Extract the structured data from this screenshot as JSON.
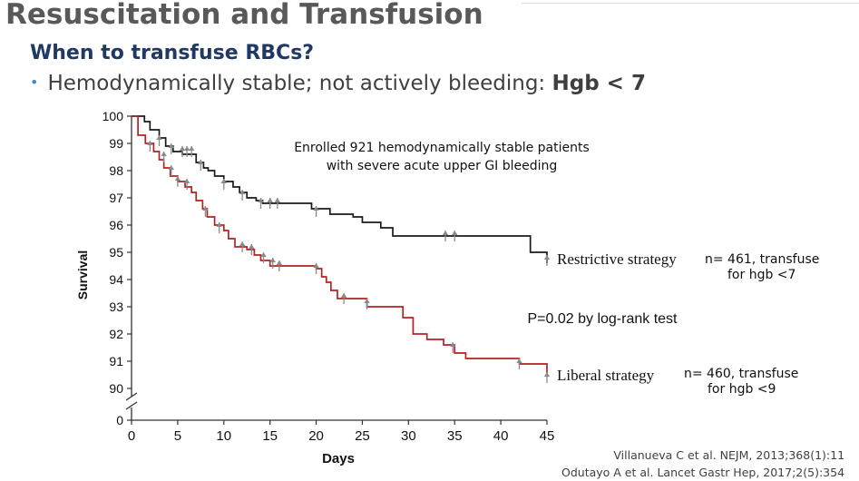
{
  "slide": {
    "title": "Resuscitation and Transfusion",
    "subtitle": "When to transfuse RBCs?",
    "bullet_text": "Hemodynamically stable; not actively bleeding: ",
    "bullet_strong": "Hgb < 7",
    "citations": [
      "Villanueva C et al. NEJM, 2013;368(1):11",
      "Odutayo A et al. Lancet Gastr Hep, 2017;2(5):354"
    ],
    "annotations": {
      "restrictive_n_line1": "n= 461, transfuse",
      "restrictive_n_line2": "for hgb <7",
      "liberal_n_line1": "n= 460, transfuse",
      "liberal_n_line2": "for hgb <9"
    }
  },
  "chart_data": {
    "type": "line",
    "subtype": "kaplan-meier step",
    "title": "",
    "note_line1": "Enrolled 921 hemodynamically stable patients",
    "note_line2": "with severe acute upper GI bleeding",
    "pvalue": "P=0.02 by log-rank test",
    "xlabel": "Days",
    "ylabel": "Survival",
    "xlim": [
      0,
      45
    ],
    "ylim": [
      0,
      100
    ],
    "y_axis_break": "between 0 and 90",
    "x_ticks": [
      "0",
      "5",
      "10",
      "15",
      "20",
      "25",
      "30",
      "35",
      "40",
      "45"
    ],
    "y_ticks": [
      "100",
      "99",
      "98",
      "97",
      "96",
      "95",
      "94",
      "93",
      "92",
      "91",
      "90",
      "0"
    ],
    "grid": false,
    "colors": {
      "restrictive": "#1a1a1a",
      "liberal": "#b22222",
      "censor": "#8a8a8a",
      "axis": "#333333"
    },
    "series": [
      {
        "name": "Restrictive strategy",
        "color": "#1a1a1a",
        "steps": [
          [
            0,
            100
          ],
          [
            0.5,
            100
          ],
          [
            1,
            100
          ],
          [
            1.4,
            99.8
          ],
          [
            2,
            99.5
          ],
          [
            3,
            99.2
          ],
          [
            3.7,
            98.9
          ],
          [
            4.5,
            98.7
          ],
          [
            5.5,
            98.6
          ],
          [
            6.5,
            98.6
          ],
          [
            7,
            98.3
          ],
          [
            7.8,
            98.1
          ],
          [
            8.3,
            98.0
          ],
          [
            9,
            97.8
          ],
          [
            10,
            97.6
          ],
          [
            11,
            97.4
          ],
          [
            11.7,
            97.2
          ],
          [
            12.5,
            97.0
          ],
          [
            13.5,
            96.9
          ],
          [
            14.2,
            96.8
          ],
          [
            15,
            96.8
          ],
          [
            16,
            96.8
          ],
          [
            17,
            96.8
          ],
          [
            19.5,
            96.6
          ],
          [
            21.5,
            96.4
          ],
          [
            24,
            96.3
          ],
          [
            25,
            96.1
          ],
          [
            27,
            95.9
          ],
          [
            28.3,
            95.6
          ],
          [
            33,
            95.6
          ],
          [
            36,
            95.6
          ],
          [
            43.2,
            95.0
          ],
          [
            45,
            94.6
          ]
        ],
        "censored": [
          [
            3,
            99.1
          ],
          [
            4.3,
            98.8
          ],
          [
            5.5,
            98.7
          ],
          [
            6,
            98.7
          ],
          [
            6.5,
            98.7
          ],
          [
            7.5,
            98.2
          ],
          [
            10,
            97.5
          ],
          [
            12,
            97.1
          ],
          [
            14,
            96.8
          ],
          [
            15,
            96.8
          ],
          [
            15.8,
            96.8
          ],
          [
            20,
            96.5
          ],
          [
            34,
            95.6
          ],
          [
            35,
            95.6
          ],
          [
            45,
            94.7
          ]
        ]
      },
      {
        "name": "Liberal strategy",
        "color": "#b22222",
        "steps": [
          [
            0,
            100
          ],
          [
            0.7,
            99.3
          ],
          [
            1.5,
            99.0
          ],
          [
            2.4,
            98.7
          ],
          [
            3,
            98.4
          ],
          [
            3.5,
            98.1
          ],
          [
            4.2,
            97.8
          ],
          [
            5,
            97.6
          ],
          [
            5.8,
            97.4
          ],
          [
            6.5,
            97.2
          ],
          [
            7,
            96.9
          ],
          [
            7.7,
            96.6
          ],
          [
            8.2,
            96.3
          ],
          [
            9,
            96.0
          ],
          [
            10,
            95.8
          ],
          [
            10.5,
            95.5
          ],
          [
            11.2,
            95.2
          ],
          [
            12.5,
            95.1
          ],
          [
            13.3,
            94.9
          ],
          [
            14,
            94.7
          ],
          [
            15,
            94.5
          ],
          [
            17,
            94.5
          ],
          [
            20,
            94.4
          ],
          [
            20.6,
            94.1
          ],
          [
            21.1,
            93.9
          ],
          [
            21.6,
            93.6
          ],
          [
            22.3,
            93.3
          ],
          [
            25.5,
            93.0
          ],
          [
            29.4,
            92.6
          ],
          [
            30.5,
            92.0
          ],
          [
            32,
            91.8
          ],
          [
            33.8,
            91.6
          ],
          [
            35,
            91.3
          ],
          [
            36.2,
            91.1
          ],
          [
            40,
            91.1
          ],
          [
            42,
            90.9
          ],
          [
            45,
            90.5
          ]
        ],
        "censored": [
          [
            2,
            98.9
          ],
          [
            3.5,
            98.5
          ],
          [
            4.3,
            98.0
          ],
          [
            5,
            97.6
          ],
          [
            6,
            97.5
          ],
          [
            8,
            96.5
          ],
          [
            9.5,
            95.9
          ],
          [
            12,
            95.2
          ],
          [
            13,
            95.1
          ],
          [
            14.3,
            94.8
          ],
          [
            15.3,
            94.6
          ],
          [
            16,
            94.5
          ],
          [
            20,
            94.4
          ],
          [
            23,
            93.3
          ],
          [
            25.5,
            93.1
          ],
          [
            34.8,
            91.5
          ],
          [
            42,
            90.9
          ],
          [
            45,
            90.4
          ]
        ]
      }
    ]
  }
}
